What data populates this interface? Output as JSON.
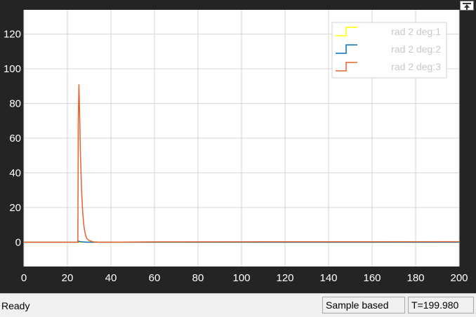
{
  "status": {
    "text": "Ready",
    "mode": "Sample based",
    "time": "T=199.980"
  },
  "chart_data": {
    "type": "line",
    "title": "",
    "xlabel": "",
    "ylabel": "",
    "xlim": [
      0,
      200
    ],
    "ylim": [
      -14,
      134
    ],
    "xticks": [
      0,
      20,
      40,
      60,
      80,
      100,
      120,
      140,
      160,
      180,
      200
    ],
    "yticks": [
      0,
      20,
      40,
      60,
      80,
      100,
      120
    ],
    "grid": true,
    "legend": "top-right",
    "background": "#ffffff",
    "series": [
      {
        "name": "rad 2 deg:1",
        "color": "#ffff00",
        "x": [
          0,
          200
        ],
        "y": [
          0,
          0
        ]
      },
      {
        "name": "rad 2 deg:2",
        "color": "#0072bd",
        "x": [
          0,
          25,
          25.2,
          26,
          27,
          28,
          29,
          40,
          200
        ],
        "y": [
          0,
          0,
          0.5,
          0.3,
          0.2,
          0.1,
          0,
          0,
          0
        ]
      },
      {
        "name": "rad 2 deg:3",
        "color": "#e5632b",
        "x": [
          0,
          24.8,
          25,
          25.3,
          25.6,
          26,
          26.5,
          27,
          27.5,
          28,
          28.5,
          29,
          30,
          31,
          32,
          35,
          40,
          60,
          200
        ],
        "y": [
          0,
          0,
          70,
          91,
          75,
          50,
          30,
          18,
          10,
          6,
          3.5,
          2,
          1,
          0.5,
          0.2,
          0,
          0,
          0.2,
          0.3
        ]
      }
    ]
  }
}
